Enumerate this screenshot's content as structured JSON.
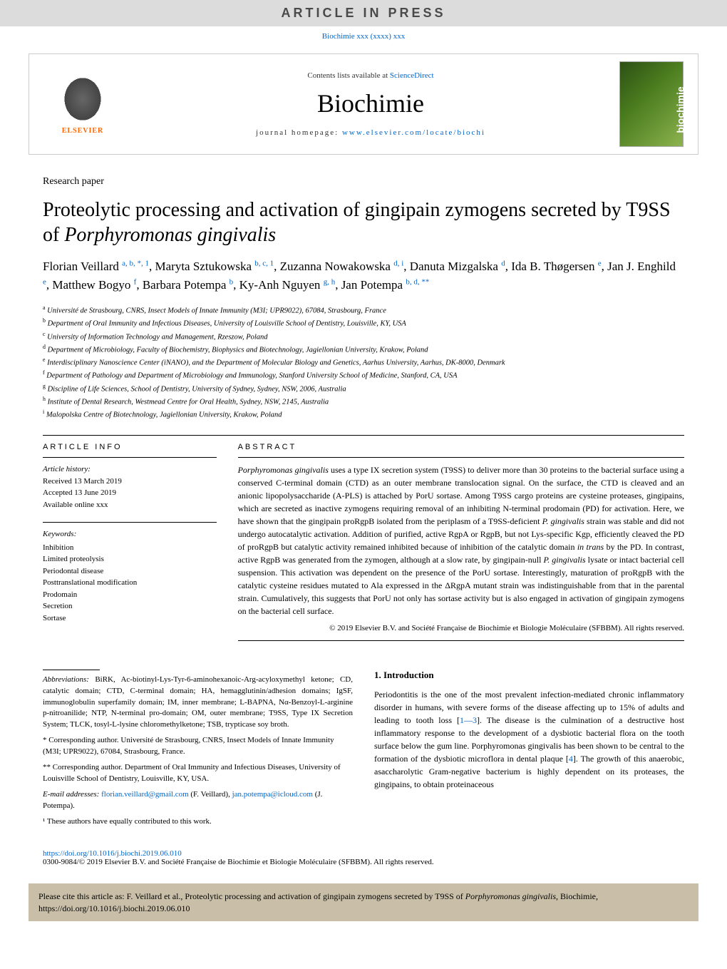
{
  "banner": "ARTICLE IN PRESS",
  "doi_ref": "Biochimie xxx (xxxx) xxx",
  "masthead": {
    "publisher": "ELSEVIER",
    "contents_prefix": "Contents lists available at ",
    "contents_link": "ScienceDirect",
    "journal": "Biochimie",
    "homepage_prefix": "journal homepage: ",
    "homepage_url": "www.elsevier.com/locate/biochi"
  },
  "paper_type": "Research paper",
  "title_html": "Proteolytic processing and activation of gingipain zymogens secreted by T9SS of <em>Porphyromonas gingivalis</em>",
  "authors": [
    {
      "name": "Florian Veillard",
      "sup": "a, b, *, 1"
    },
    {
      "name": "Maryta Sztukowska",
      "sup": "b, c, 1"
    },
    {
      "name": "Zuzanna Nowakowska",
      "sup": "d, i"
    },
    {
      "name": "Danuta Mizgalska",
      "sup": "d"
    },
    {
      "name": "Ida B. Thøgersen",
      "sup": "e"
    },
    {
      "name": "Jan J. Enghild",
      "sup": "e"
    },
    {
      "name": "Matthew Bogyo",
      "sup": "f"
    },
    {
      "name": "Barbara Potempa",
      "sup": "b"
    },
    {
      "name": "Ky-Anh Nguyen",
      "sup": "g, h"
    },
    {
      "name": "Jan Potempa",
      "sup": "b, d, **"
    }
  ],
  "affiliations": [
    {
      "sup": "a",
      "text": "Université de Strasbourg, CNRS, Insect Models of Innate Immunity (M3I; UPR9022), 67084, Strasbourg, France"
    },
    {
      "sup": "b",
      "text": "Department of Oral Immunity and Infectious Diseases, University of Louisville School of Dentistry, Louisville, KY, USA"
    },
    {
      "sup": "c",
      "text": "University of Information Technology and Management, Rzeszow, Poland"
    },
    {
      "sup": "d",
      "text": "Department of Microbiology, Faculty of Biochemistry, Biophysics and Biotechnology, Jagiellonian University, Krakow, Poland"
    },
    {
      "sup": "e",
      "text": "Interdisciplinary Nanoscience Center (iNANO), and the Department of Molecular Biology and Genetics, Aarhus University, Aarhus, DK-8000, Denmark"
    },
    {
      "sup": "f",
      "text": "Department of Pathology and Department of Microbiology and Immunology, Stanford University School of Medicine, Stanford, CA, USA"
    },
    {
      "sup": "g",
      "text": "Discipline of Life Sciences, School of Dentistry, University of Sydney, Sydney, NSW, 2006, Australia"
    },
    {
      "sup": "h",
      "text": "Institute of Dental Research, Westmead Centre for Oral Health, Sydney, NSW, 2145, Australia"
    },
    {
      "sup": "i",
      "text": "Malopolska Centre of Biotechnology, Jagiellonian University, Krakow, Poland"
    }
  ],
  "article_info_head": "ARTICLE INFO",
  "abstract_head": "ABSTRACT",
  "history": {
    "label": "Article history:",
    "received": "Received 13 March 2019",
    "accepted": "Accepted 13 June 2019",
    "online": "Available online xxx"
  },
  "keywords": {
    "label": "Keywords:",
    "items": [
      "Inhibition",
      "Limited proteolysis",
      "Periodontal disease",
      "Posttranslational modification",
      "Prodomain",
      "Secretion",
      "Sortase"
    ]
  },
  "abstract_html": "<em>Porphyromonas gingivalis</em> uses a type IX secretion system (T9SS) to deliver more than 30 proteins to the bacterial surface using a conserved C-terminal domain (CTD) as an outer membrane translocation signal. On the surface, the CTD is cleaved and an anionic lipopolysaccharide (A-PLS) is attached by PorU sortase. Among T9SS cargo proteins are cysteine proteases, gingipains, which are secreted as inactive zymogens requiring removal of an inhibiting N-terminal prodomain (PD) for activation. Here, we have shown that the gingipain proRgpB isolated from the periplasm of a T9SS-deficient <em>P. gingivalis</em> strain was stable and did not undergo autocatalytic activation. Addition of purified, active RgpA or RgpB, but not Lys-specific Kgp, efficiently cleaved the PD of proRgpB but catalytic activity remained inhibited because of inhibition of the catalytic domain <em>in trans</em> by the PD. In contrast, active RgpB was generated from the zymogen, although at a slow rate, by gingipain-null <em>P. gingivalis</em> lysate or intact bacterial cell suspension. This activation was dependent on the presence of the PorU sortase. Interestingly, maturation of proRgpB with the catalytic cysteine residues mutated to Ala expressed in the ΔRgpA mutant strain was indistinguishable from that in the parental strain. Cumulatively, this suggests that PorU not only has sortase activity but is also engaged in activation of gingipain zymogens on the bacterial cell surface.",
  "copyright": "© 2019 Elsevier B.V. and Société Française de Biochimie et Biologie Moléculaire (SFBBM). All rights reserved.",
  "abbreviations": {
    "label": "Abbreviations:",
    "text": "BiRK, Ac-biotinyl-Lys-Tyr-6-aminohexanoic-Arg-acyloxymethyl ketone; CD, catalytic domain; CTD, C-terminal domain; HA, hemagglutinin/adhesion domains; IgSF, immunoglobulin superfamily domain; IM, inner membrane; L-BAPNA, Nα-Benzoyl-L-arginine p-nitroanilide; NTP, N-terminal pro-domain; OM, outer membrane; T9SS, Type IX Secretion System; TLCK, tosyl-L-lysine chloromethylketone; TSB, trypticase soy broth."
  },
  "corresp": {
    "c1": "* Corresponding author. Université de Strasbourg, CNRS, Insect Models of Innate Immunity (M3I; UPR9022), 67084, Strasbourg, France.",
    "c2": "** Corresponding author. Department of Oral Immunity and Infectious Diseases, University of Louisville School of Dentistry, Louisville, KY, USA.",
    "emails_label": "E-mail addresses:",
    "email1": "florian.veillard@gmail.com",
    "email1_who": " (F. Veillard), ",
    "email2": "jan.potempa@icloud.com",
    "email2_who": " (J. Potempa).",
    "note1": "¹ These authors have equally contributed to this work."
  },
  "intro": {
    "head": "1. Introduction",
    "text_html": "Periodontitis is the one of the most prevalent infection-mediated chronic inflammatory disorder in humans, with severe forms of the disease affecting up to 15% of adults and leading to tooth loss [<a href='#'>1—3</a>]. The disease is the culmination of a destructive host inflammatory response to the development of a dysbiotic bacterial flora on the tooth surface below the gum line. Porphyromonas gingivalis has been shown to be central to the formation of the dysbiotic microflora in dental plaque [<a href='#'>4</a>]. The growth of this anaerobic, asaccharolytic Gram-negative bacterium is highly dependent on its proteases, the gingipains, to obtain proteinaceous"
  },
  "doi_footer": {
    "link": "https://doi.org/10.1016/j.biochi.2019.06.010",
    "copyright": "0300-9084/© 2019 Elsevier B.V. and Société Française de Biochimie et Biologie Moléculaire (SFBBM). All rights reserved."
  },
  "cite_box_html": "Please cite this article as: F. Veillard et al., Proteolytic processing and activation of gingipain zymogens secreted by T9SS of <em>Porphyromonas gingivalis</em>, Biochimie, https://doi.org/10.1016/j.biochi.2019.06.010"
}
